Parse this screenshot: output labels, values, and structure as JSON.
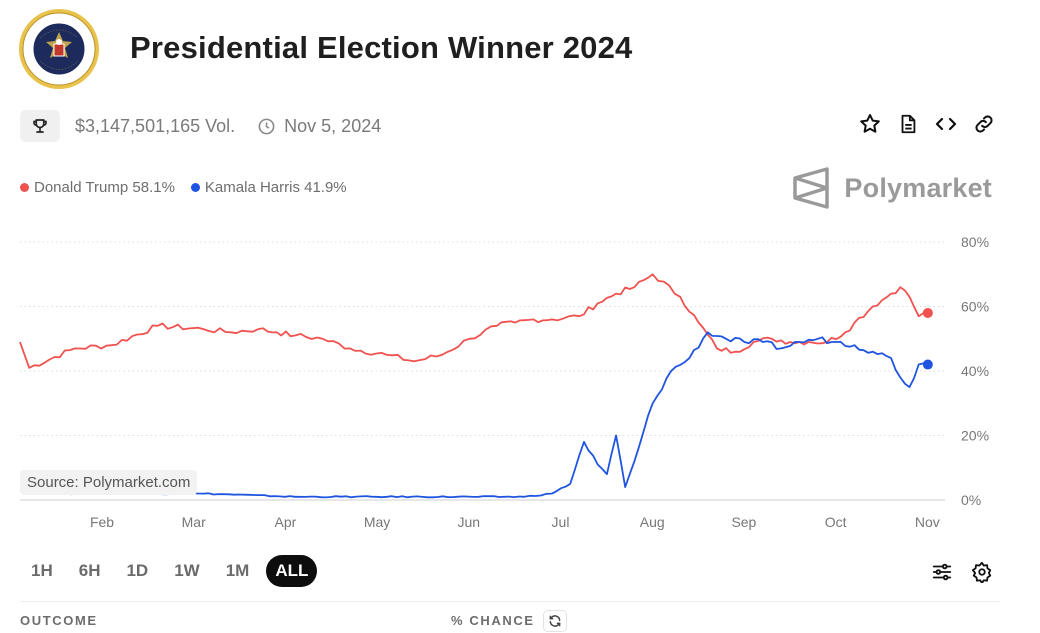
{
  "header": {
    "title": "Presidential Election Winner 2024",
    "seal_icon": "presidential-seal-icon"
  },
  "meta": {
    "volume": "$3,147,501,165 Vol.",
    "date": "Nov 5, 2024"
  },
  "legend": [
    {
      "label": "Donald Trump 58.1%",
      "color": "#f0524f"
    },
    {
      "label": "Kamala Harris 41.9%",
      "color": "#1f54e0"
    }
  ],
  "brand": {
    "name": "Polymarket"
  },
  "source": "Source: Polymarket.com",
  "ranges": [
    "1H",
    "6H",
    "1D",
    "1W",
    "1M",
    "ALL"
  ],
  "active_range": "ALL",
  "table_header": {
    "outcome": "OUTCOME",
    "chance": "% CHANCE"
  },
  "chart_data": {
    "type": "line",
    "x_labels": [
      "Feb",
      "Mar",
      "Apr",
      "May",
      "Jun",
      "Jul",
      "Aug",
      "Sep",
      "Oct",
      "Nov"
    ],
    "y_labels": [
      "80%",
      "60%",
      "40%",
      "20%",
      "0%"
    ],
    "ylim": [
      0,
      80
    ],
    "grid": true,
    "series": [
      {
        "name": "Donald Trump",
        "color": "#f0524f",
        "x": [
          0.0,
          0.1,
          0.6,
          1.0,
          1.5,
          2.0,
          2.3,
          2.6,
          2.8,
          3.0,
          3.3,
          3.6,
          4.0,
          4.3,
          4.6,
          4.9,
          5.2,
          5.4,
          5.6,
          5.8,
          6.1,
          6.3,
          6.5,
          6.7,
          6.9,
          7.2,
          7.4,
          7.6,
          7.8,
          8.0,
          8.2,
          8.4,
          8.6,
          8.8,
          9.0,
          9.1,
          9.3,
          9.5,
          9.6,
          9.7,
          9.8,
          9.9
        ],
        "y": [
          49,
          41,
          47,
          48,
          54,
          53,
          52,
          53,
          52,
          51,
          50,
          47,
          45,
          43,
          45,
          50,
          54,
          55,
          56,
          56,
          57,
          61,
          64,
          66,
          70,
          63,
          55,
          47,
          46,
          49,
          50,
          49,
          49,
          49,
          52,
          55,
          60,
          64,
          66,
          63,
          57,
          58
        ]
      },
      {
        "name": "Kamala Harris",
        "color": "#1f54e0",
        "x": [
          0.0,
          0.5,
          1.0,
          2.0,
          3.0,
          4.0,
          5.0,
          5.5,
          5.8,
          6.0,
          6.15,
          6.3,
          6.4,
          6.5,
          6.6,
          6.7,
          6.9,
          7.1,
          7.3,
          7.5,
          7.7,
          7.9,
          8.1,
          8.3,
          8.5,
          8.7,
          8.9,
          9.1,
          9.3,
          9.5,
          9.6,
          9.7,
          9.8,
          9.9
        ],
        "y": [
          3,
          2,
          2,
          2,
          1,
          1,
          1,
          1,
          2,
          5,
          18,
          11,
          8,
          20,
          4,
          12,
          30,
          40,
          44,
          52,
          50,
          49,
          49,
          47,
          49,
          50,
          49,
          48,
          46,
          44,
          38,
          35,
          42,
          42
        ]
      }
    ]
  },
  "icons": {
    "trophy": "trophy-icon",
    "clock": "clock-icon",
    "star": "star-icon",
    "document": "document-icon",
    "embed": "code-icon",
    "link": "link-icon",
    "brand": "polymarket-logo-icon",
    "filters": "sliders-icon",
    "settings": "gear-icon",
    "refresh": "refresh-icon"
  }
}
